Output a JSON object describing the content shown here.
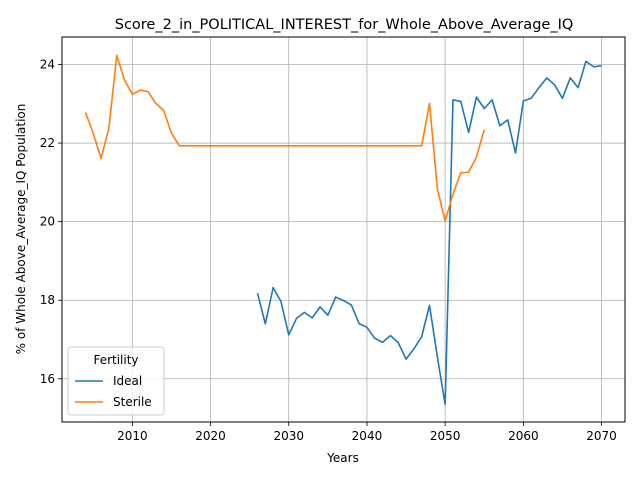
{
  "chart_data": {
    "type": "line",
    "title": "Score_2_in_POLITICAL_INTEREST_for_Whole_Above_Average_IQ",
    "xlabel": "Years",
    "ylabel": "% of Whole Above_Average_IQ Population",
    "xlim": [
      2001,
      2073
    ],
    "ylim": [
      14.9,
      24.7
    ],
    "xticks": [
      2010,
      2020,
      2030,
      2040,
      2050,
      2060,
      2070
    ],
    "yticks": [
      16,
      18,
      20,
      22,
      24
    ],
    "grid": true,
    "legend": {
      "title": "Fertility",
      "location": "lower-left"
    },
    "series": [
      {
        "name": "Ideal",
        "color": "#1f77b4",
        "x": [
          2026,
          2027,
          2028,
          2029,
          2030,
          2031,
          2032,
          2033,
          2034,
          2035,
          2036,
          2037,
          2038,
          2039,
          2040,
          2041,
          2042,
          2043,
          2044,
          2045,
          2046,
          2047,
          2048,
          2049,
          2050,
          2051,
          2052,
          2053,
          2054,
          2055,
          2056,
          2057,
          2058,
          2059,
          2060,
          2061,
          2062,
          2063,
          2064,
          2065,
          2066,
          2067,
          2068,
          2069,
          2070
        ],
        "y": [
          18.18,
          17.4,
          18.32,
          17.97,
          17.12,
          17.54,
          17.69,
          17.55,
          17.83,
          17.62,
          18.08,
          17.99,
          17.88,
          17.4,
          17.31,
          17.03,
          16.93,
          17.1,
          16.92,
          16.5,
          16.76,
          17.07,
          17.87,
          16.56,
          15.35,
          23.1,
          23.06,
          22.27,
          23.17,
          22.88,
          23.1,
          22.44,
          22.59,
          21.75,
          23.07,
          23.14,
          23.41,
          23.66,
          23.48,
          23.14,
          23.66,
          23.41,
          24.08,
          23.94,
          23.97
        ]
      },
      {
        "name": "Sterile",
        "color": "#ff7f0e",
        "x": [
          2004,
          2005,
          2006,
          2007,
          2008,
          2009,
          2010,
          2011,
          2012,
          2013,
          2014,
          2015,
          2016,
          2017,
          2018,
          2019,
          2020,
          2021,
          2022,
          2023,
          2024,
          2025,
          2026,
          2027,
          2028,
          2029,
          2030,
          2031,
          2032,
          2033,
          2034,
          2035,
          2036,
          2037,
          2038,
          2039,
          2040,
          2041,
          2042,
          2043,
          2044,
          2045,
          2046,
          2047,
          2048,
          2049,
          2050,
          2051,
          2052,
          2053,
          2054,
          2055
        ],
        "y": [
          22.78,
          22.24,
          21.61,
          22.39,
          24.23,
          23.6,
          23.24,
          23.35,
          23.31,
          23.01,
          22.83,
          22.25,
          21.93,
          21.93,
          21.93,
          21.93,
          21.93,
          21.93,
          21.93,
          21.93,
          21.93,
          21.93,
          21.93,
          21.93,
          21.93,
          21.93,
          21.93,
          21.93,
          21.93,
          21.93,
          21.93,
          21.93,
          21.93,
          21.93,
          21.93,
          21.93,
          21.93,
          21.93,
          21.93,
          21.93,
          21.93,
          21.93,
          21.93,
          21.93,
          23.01,
          20.84,
          20.02,
          20.7,
          21.24,
          21.26,
          21.64,
          22.34
        ]
      }
    ]
  }
}
